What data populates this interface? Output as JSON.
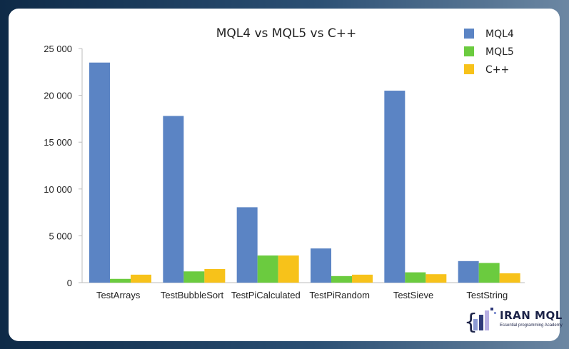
{
  "chart_data": {
    "type": "bar",
    "title": "MQL4 vs MQL5 vs C++",
    "categories": [
      "TestArrays",
      "TestBubbleSort",
      "TestPiCalculated",
      "TestPiRandom",
      "TestSieve",
      "TestString"
    ],
    "series": [
      {
        "name": "MQL4",
        "values": [
          23500,
          17800,
          8050,
          3650,
          20500,
          2300
        ],
        "color": "#5b84c4"
      },
      {
        "name": "MQL5",
        "values": [
          400,
          1200,
          2900,
          700,
          1100,
          2100
        ],
        "color": "#6bcb3f"
      },
      {
        "name": "C++",
        "values": [
          850,
          1450,
          2900,
          850,
          900,
          1000
        ],
        "color": "#f7c21a"
      }
    ],
    "ylim": [
      0,
      25000
    ],
    "yticks": [
      0,
      5000,
      10000,
      15000,
      20000,
      25000
    ],
    "ytick_labels": [
      "0",
      "5 000",
      "10 000",
      "15 000",
      "20 000",
      "25 000"
    ],
    "grid": false,
    "legend_position": "top-right"
  },
  "logo": {
    "name": "IRAN MQL",
    "tagline": "Essential programming Academy"
  }
}
